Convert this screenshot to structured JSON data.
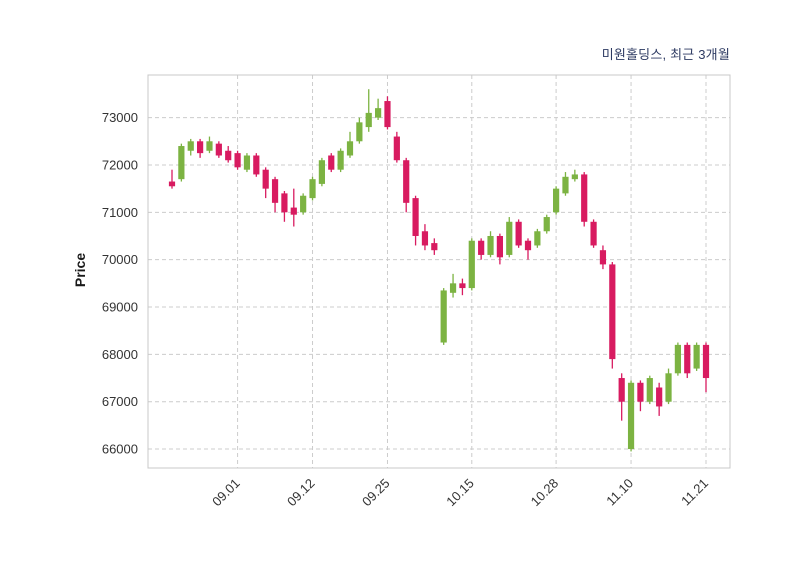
{
  "chart_data": {
    "type": "candlestick",
    "title": "미원홀딩스, 최근 3개월",
    "ylabel": "Price",
    "ylim": [
      65600,
      73900
    ],
    "y_ticks": [
      66000,
      67000,
      68000,
      69000,
      70000,
      71000,
      72000,
      73000
    ],
    "x_tick_labels": [
      "09.01",
      "09.12",
      "09.25",
      "10.15",
      "10.28",
      "11.10",
      "11.21"
    ],
    "x_tick_indices": [
      7,
      15,
      23,
      32,
      41,
      49,
      57
    ],
    "up_color": "#7cb342",
    "down_color": "#d81b60",
    "grid_color": "#cccccc",
    "border_color": "#c8c8c8",
    "tick_label_color": "#333333",
    "legend_position": "top-right-title",
    "grid": "dashed",
    "candles": [
      [
        71650,
        71900,
        71500,
        71550
      ],
      [
        71700,
        72450,
        71650,
        72400
      ],
      [
        72300,
        72550,
        72200,
        72500
      ],
      [
        72500,
        72550,
        72150,
        72250
      ],
      [
        72300,
        72600,
        72250,
        72500
      ],
      [
        72450,
        72500,
        72150,
        72200
      ],
      [
        72300,
        72400,
        72050,
        72100
      ],
      [
        72250,
        72300,
        71900,
        71950
      ],
      [
        71900,
        72250,
        71850,
        72200
      ],
      [
        72200,
        72250,
        71750,
        71800
      ],
      [
        71900,
        71950,
        71300,
        71500
      ],
      [
        71700,
        71750,
        71000,
        71200
      ],
      [
        71400,
        71450,
        70800,
        71000
      ],
      [
        71100,
        71500,
        70700,
        70950
      ],
      [
        71000,
        71400,
        70950,
        71350
      ],
      [
        71300,
        71750,
        71250,
        71700
      ],
      [
        71600,
        72150,
        71550,
        72100
      ],
      [
        72200,
        72250,
        71850,
        71900
      ],
      [
        71900,
        72350,
        71850,
        72300
      ],
      [
        72200,
        72700,
        72150,
        72500
      ],
      [
        72500,
        73000,
        72450,
        72900
      ],
      [
        72800,
        73600,
        72700,
        73100
      ],
      [
        73000,
        73400,
        72950,
        73200
      ],
      [
        73350,
        73450,
        72750,
        72800
      ],
      [
        72600,
        72700,
        72050,
        72100
      ],
      [
        72100,
        72150,
        71000,
        71200
      ],
      [
        71300,
        71350,
        70300,
        70500
      ],
      [
        70600,
        70750,
        70200,
        70300
      ],
      [
        70350,
        70450,
        70100,
        70200
      ],
      [
        68250,
        69400,
        68200,
        69350
      ],
      [
        69300,
        69700,
        69200,
        69500
      ],
      [
        69500,
        69600,
        69250,
        69400
      ],
      [
        69400,
        70450,
        69350,
        70400
      ],
      [
        70400,
        70450,
        70000,
        70100
      ],
      [
        70100,
        70600,
        70050,
        70500
      ],
      [
        70500,
        70550,
        69900,
        70050
      ],
      [
        70100,
        70900,
        70050,
        70800
      ],
      [
        70800,
        70850,
        70250,
        70300
      ],
      [
        70400,
        70450,
        70000,
        70200
      ],
      [
        70300,
        70650,
        70250,
        70600
      ],
      [
        70600,
        70950,
        70550,
        70900
      ],
      [
        71000,
        71550,
        70950,
        71500
      ],
      [
        71400,
        71850,
        71350,
        71750
      ],
      [
        71700,
        71900,
        71650,
        71800
      ],
      [
        71800,
        71850,
        70700,
        70800
      ],
      [
        70800,
        70850,
        70250,
        70300
      ],
      [
        70200,
        70300,
        69800,
        69900
      ],
      [
        69900,
        69950,
        67700,
        67900
      ],
      [
        67500,
        67600,
        66600,
        67000
      ],
      [
        66000,
        67450,
        65950,
        67400
      ],
      [
        67400,
        67450,
        66800,
        67000
      ],
      [
        67000,
        67550,
        66950,
        67500
      ],
      [
        67300,
        67400,
        66700,
        66900
      ],
      [
        67000,
        67700,
        66950,
        67600
      ],
      [
        67600,
        68250,
        67550,
        68200
      ],
      [
        68200,
        68250,
        67500,
        67600
      ],
      [
        67700,
        68250,
        67650,
        68200
      ],
      [
        68200,
        68250,
        67200,
        67500
      ]
    ]
  }
}
